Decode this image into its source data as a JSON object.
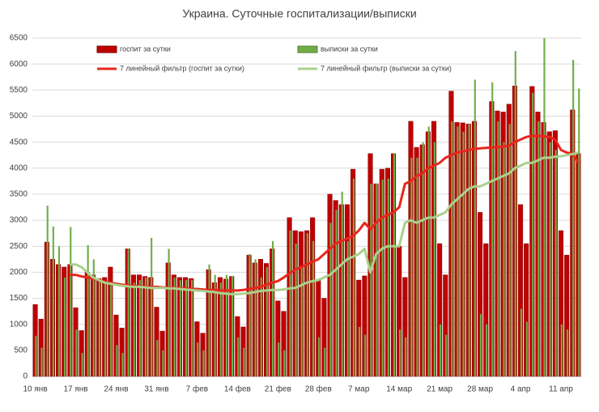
{
  "chart_data": {
    "type": "bar",
    "title": "Украина. Суточные госпитализации/выписки",
    "categories": [
      "10 янв",
      null,
      null,
      null,
      null,
      null,
      null,
      "17 янв",
      null,
      null,
      null,
      null,
      null,
      null,
      "24 янв",
      null,
      null,
      null,
      null,
      null,
      null,
      "31 янв",
      null,
      null,
      null,
      null,
      null,
      null,
      "7 фев",
      null,
      null,
      null,
      null,
      null,
      null,
      "14 фев",
      null,
      null,
      null,
      null,
      null,
      null,
      "21 фев",
      null,
      null,
      null,
      null,
      null,
      null,
      "28 фев",
      null,
      null,
      null,
      null,
      null,
      null,
      "7 мар",
      null,
      null,
      null,
      null,
      null,
      null,
      "14 мар",
      null,
      null,
      null,
      null,
      null,
      null,
      "21 мар",
      null,
      null,
      null,
      null,
      null,
      null,
      "28 мар",
      null,
      null,
      null,
      null,
      null,
      null,
      "4 апр",
      null,
      null,
      null,
      null,
      null,
      null,
      "11 апр",
      null,
      null,
      null
    ],
    "series": [
      {
        "name": "госпит за сутки",
        "type": "bar",
        "color": "#c00000",
        "values": [
          1380,
          1100,
          2580,
          2250,
          2150,
          2100,
          2150,
          1320,
          880,
          2000,
          1950,
          1880,
          1900,
          2100,
          1180,
          930,
          2450,
          1950,
          1950,
          1920,
          1900,
          1330,
          870,
          2180,
          1950,
          1900,
          1900,
          1880,
          1050,
          830,
          2050,
          1800,
          1900,
          1870,
          1920,
          1150,
          950,
          2330,
          2180,
          2250,
          2170,
          2450,
          1450,
          1250,
          3050,
          2800,
          2780,
          2800,
          3050,
          1850,
          1500,
          3500,
          3380,
          3300,
          3300,
          3980,
          1850,
          1930,
          4280,
          3700,
          3980,
          4000,
          4280,
          2500,
          1900,
          4900,
          4400,
          4450,
          4700,
          4900,
          2550,
          1950,
          5480,
          4880,
          4870,
          4850,
          4900,
          3150,
          2550,
          5280,
          5100,
          5080,
          5230,
          5580,
          3300,
          2550,
          5570,
          5080,
          4880,
          4700,
          4720,
          2800,
          2330,
          5120,
          4280
        ]
      },
      {
        "name": "выписки за сутки",
        "type": "bar",
        "color": "#70ad47",
        "values": [
          780,
          550,
          3280,
          2880,
          2500,
          1900,
          2870,
          900,
          450,
          2520,
          2250,
          1850,
          1800,
          1750,
          600,
          450,
          2450,
          1800,
          1850,
          1900,
          2660,
          700,
          500,
          2450,
          1900,
          1850,
          1850,
          1850,
          650,
          500,
          2150,
          1950,
          1800,
          1950,
          1920,
          750,
          550,
          2350,
          2250,
          1900,
          2100,
          2600,
          650,
          500,
          2800,
          2550,
          2100,
          2750,
          2600,
          750,
          550,
          2950,
          3200,
          3550,
          2600,
          3800,
          950,
          800,
          3700,
          3700,
          3780,
          3800,
          4280,
          900,
          750,
          4200,
          4200,
          4500,
          4800,
          4500,
          1000,
          800,
          4900,
          4800,
          4700,
          4850,
          5700,
          1200,
          1000,
          5650,
          4900,
          4500,
          4850,
          6250,
          1300,
          1050,
          5450,
          4900,
          6500,
          4500,
          4350,
          1000,
          900,
          6080,
          5530
        ]
      },
      {
        "name": "7 линейный фильтр (госпит за сутки)",
        "type": "line",
        "color": "#e8261d",
        "values": [
          null,
          null,
          null,
          null,
          null,
          null,
          1950,
          1950,
          1920,
          1900,
          1880,
          1850,
          1820,
          1800,
          1780,
          1760,
          1750,
          1740,
          1730,
          1720,
          1720,
          1720,
          1710,
          1700,
          1700,
          1690,
          1690,
          1680,
          1680,
          1670,
          1660,
          1660,
          1650,
          1650,
          1650,
          1650,
          1660,
          1680,
          1700,
          1720,
          1760,
          1800,
          1830,
          1900,
          1980,
          2050,
          2100,
          2150,
          2200,
          2250,
          2350,
          2450,
          2550,
          2600,
          2650,
          2700,
          2800,
          2950,
          2830,
          2950,
          3050,
          3100,
          3150,
          3250,
          3700,
          3750,
          3850,
          3900,
          4000,
          4050,
          4100,
          4200,
          4250,
          4300,
          4320,
          4350,
          4370,
          4380,
          4390,
          4400,
          4400,
          4420,
          4430,
          4500,
          4550,
          4600,
          4620,
          4620,
          4610,
          4600,
          4550,
          4350,
          4300,
          4280,
          4100
        ]
      },
      {
        "name": "7 линейный фильтр (выписки за сутки)",
        "type": "line",
        "color": "#a9d18e",
        "values": [
          null,
          null,
          null,
          null,
          null,
          null,
          2150,
          2150,
          2100,
          2000,
          1900,
          1850,
          1800,
          1780,
          1760,
          1740,
          1730,
          1720,
          1720,
          1710,
          1700,
          1700,
          1700,
          1690,
          1690,
          1680,
          1670,
          1660,
          1650,
          1640,
          1630,
          1620,
          1600,
          1590,
          1580,
          1580,
          1590,
          1600,
          1620,
          1640,
          1650,
          1660,
          1660,
          1670,
          1690,
          1700,
          1750,
          1800,
          1830,
          1850,
          1900,
          1950,
          2050,
          2150,
          2250,
          2300,
          2350,
          2450,
          2000,
          2350,
          2450,
          2500,
          2500,
          2500,
          2950,
          3000,
          2950,
          3000,
          3050,
          3050,
          3100,
          3150,
          3300,
          3400,
          3500,
          3600,
          3650,
          3650,
          3700,
          3750,
          3800,
          3850,
          3900,
          4000,
          4050,
          4100,
          4100,
          4150,
          4200,
          4200,
          4220,
          4230,
          4250,
          4270,
          4300
        ]
      }
    ],
    "ylim": [
      0,
      6500
    ],
    "yticks": [
      0,
      500,
      1000,
      1500,
      2000,
      2500,
      3000,
      3500,
      4000,
      4500,
      5000,
      5500,
      6000,
      6500
    ],
    "grid": true
  }
}
